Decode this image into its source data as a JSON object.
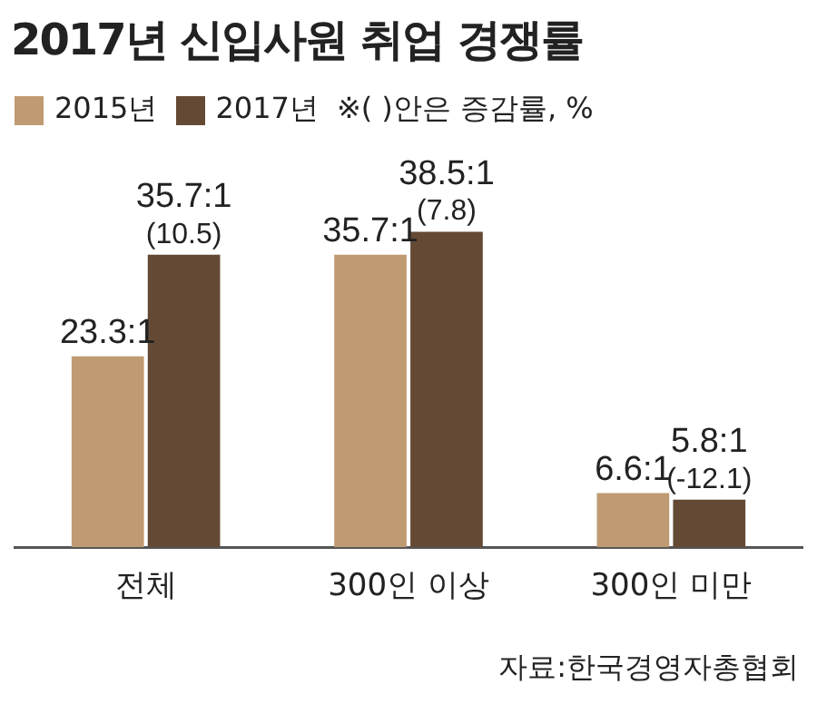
{
  "chart_data": {
    "type": "bar",
    "title": "2017년 신입사원 취업 경쟁률",
    "categories": [
      "전체",
      "300인 이상",
      "300인 미만"
    ],
    "series": [
      {
        "name": "2015년",
        "color": "#c09a72",
        "values": [
          23.3,
          35.7,
          6.6
        ],
        "value_labels": [
          "23.3:1",
          "35.7:1",
          "6.6:1"
        ]
      },
      {
        "name": "2017년",
        "color": "#644a35",
        "values": [
          35.7,
          38.5,
          5.8
        ],
        "value_labels": [
          "35.7:1\n(10.5)",
          "38.5:1\n(7.8)",
          "5.8:1\n(-12.1)"
        ]
      }
    ],
    "legend": "top left",
    "grid": false,
    "annotations": [
      "※( )안은 증감률, %",
      "자료:한국경영자총협회"
    ]
  }
}
